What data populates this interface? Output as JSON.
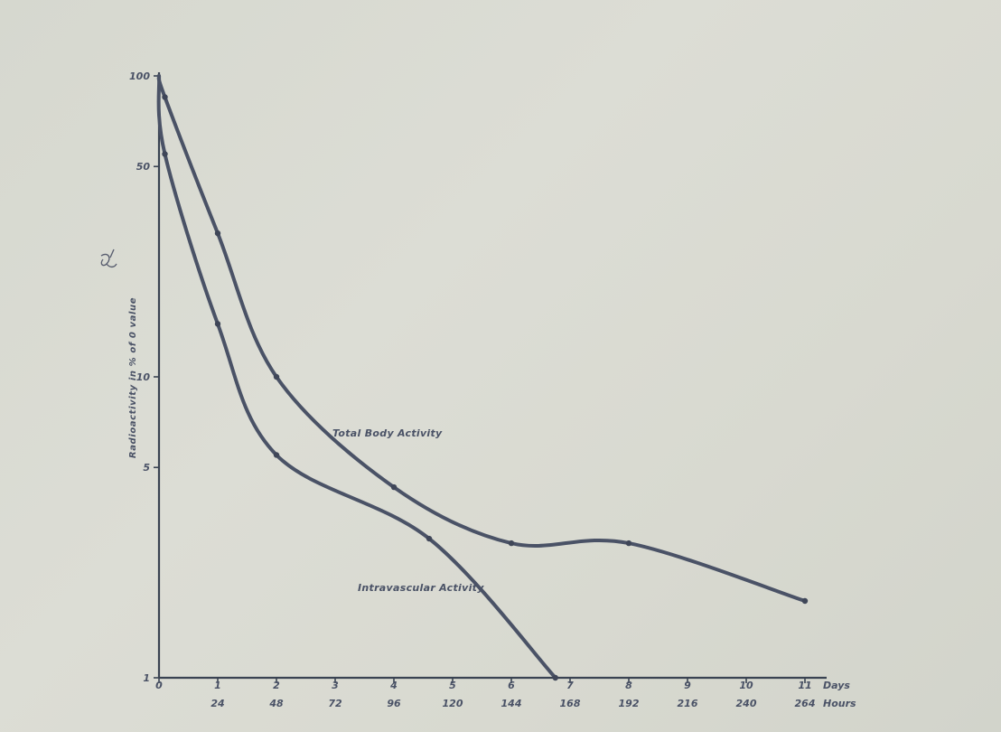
{
  "chart_data": {
    "type": "line",
    "title": "",
    "ylabel": "Radioactivity in % of 0 value",
    "y_scale": "log",
    "ylim": [
      1,
      100
    ],
    "y_ticks": [
      {
        "value": 1,
        "label": "1"
      },
      {
        "value": 5,
        "label": "5"
      },
      {
        "value": 10,
        "label": "10"
      },
      {
        "value": 50,
        "label": "50"
      },
      {
        "value": 100,
        "label": "100"
      }
    ],
    "xlim": [
      0,
      11.5
    ],
    "x_days_ticks": [
      "0",
      "1",
      "2",
      "3",
      "4",
      "5",
      "6",
      "7",
      "8",
      "9",
      "10",
      "11"
    ],
    "x_days_unit": "Days",
    "x_hours_ticks": [
      {
        "day": 1,
        "label": "24"
      },
      {
        "day": 2,
        "label": "48"
      },
      {
        "day": 3,
        "label": "72"
      },
      {
        "day": 4,
        "label": "96"
      },
      {
        "day": 5,
        "label": "120"
      },
      {
        "day": 6,
        "label": "144"
      },
      {
        "day": 7,
        "label": "168"
      },
      {
        "day": 8,
        "label": "192"
      },
      {
        "day": 9,
        "label": "216"
      },
      {
        "day": 10,
        "label": "240"
      },
      {
        "day": 11,
        "label": "264"
      }
    ],
    "x_hours_unit": "Hours",
    "series": [
      {
        "name": "Total Body Activity",
        "x": [
          0,
          0.1,
          1,
          2,
          4,
          6,
          8,
          11
        ],
        "y": [
          100,
          85,
          30,
          10,
          4.3,
          2.8,
          2.8,
          1.8
        ]
      },
      {
        "name": "Intravascular Activity",
        "x": [
          0,
          0.1,
          1,
          2,
          4.6,
          6.75
        ],
        "y": [
          100,
          55,
          15,
          5.5,
          2.9,
          1
        ]
      }
    ],
    "grid": false,
    "legend": "inline labels"
  }
}
